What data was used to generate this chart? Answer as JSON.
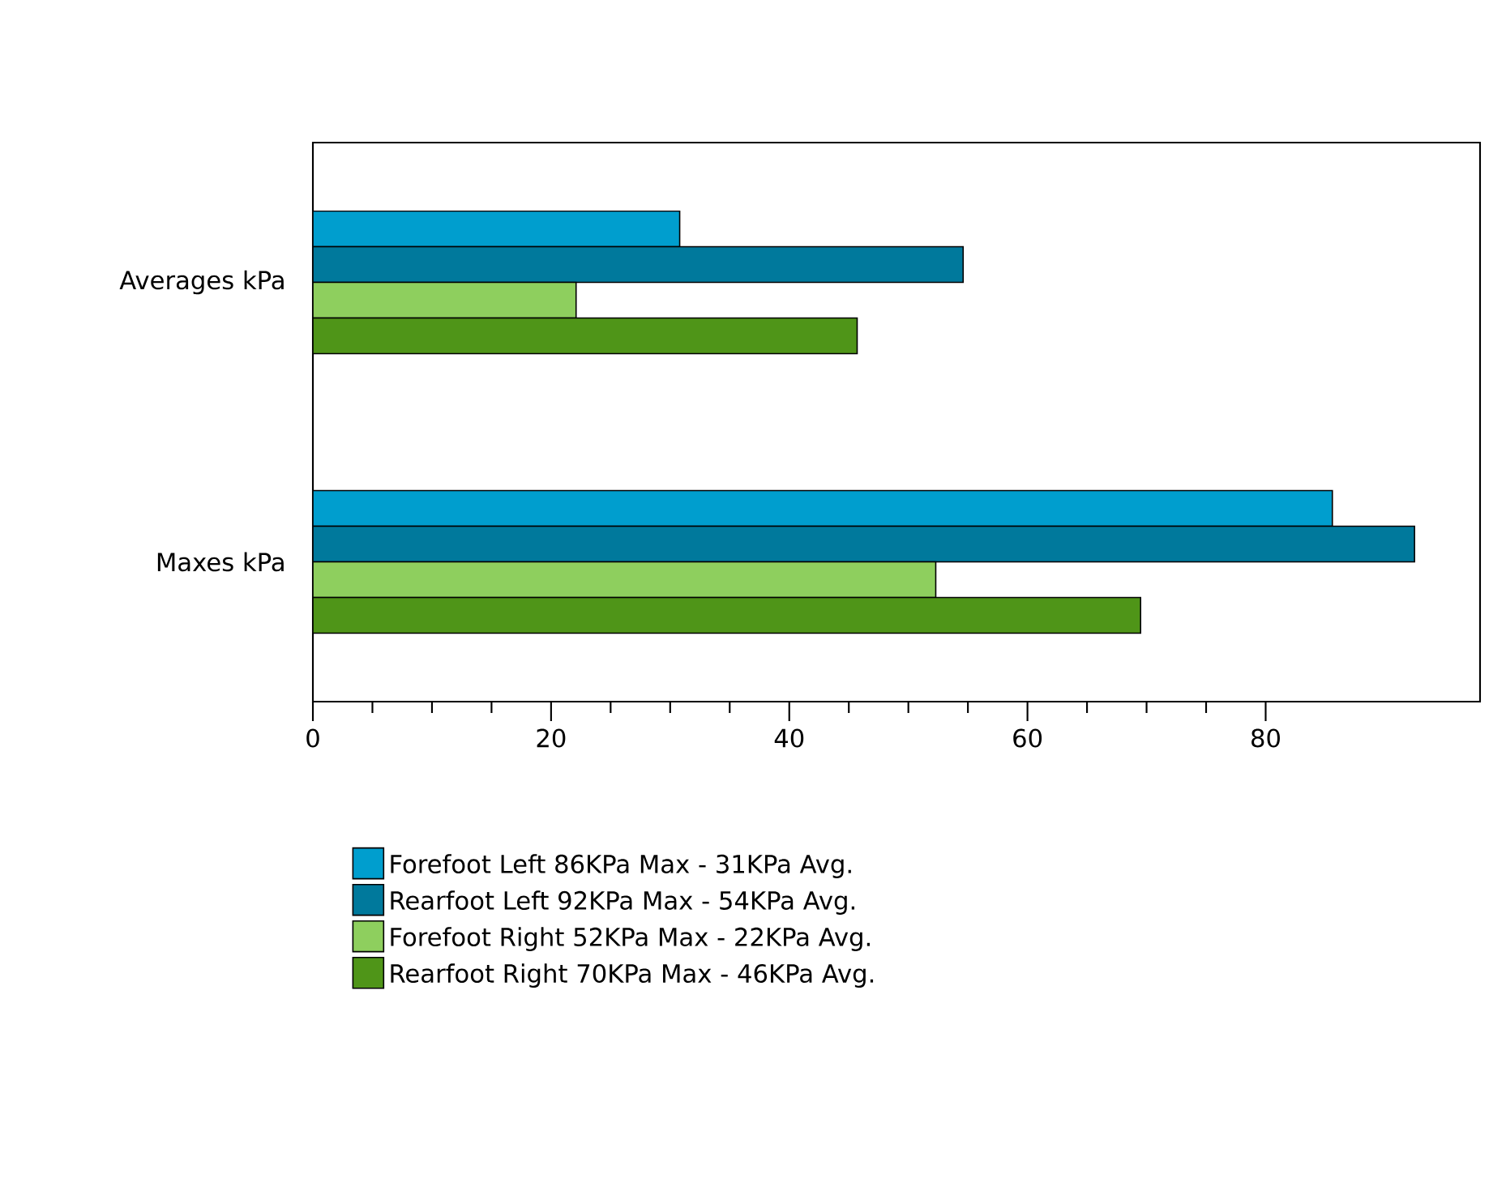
{
  "chart_data": {
    "type": "bar",
    "orientation": "horizontal",
    "categories": [
      "Averages kPa",
      "Maxes kPa"
    ],
    "series": [
      {
        "name": "Forefoot Left 86KPa Max - 31KPa Avg.",
        "color": "#009ece",
        "values": [
          30.8,
          85.6
        ]
      },
      {
        "name": "Rearfoot Left 92KPa Max - 54KPa Avg.",
        "color": "#00799c",
        "values": [
          54.6,
          92.5
        ]
      },
      {
        "name": "Forefoot Right 52KPa Max - 22KPa Avg.",
        "color": "#8ecf5e",
        "values": [
          22.1,
          52.3
        ]
      },
      {
        "name": "Rearfoot Right 70KPa Max - 46KPa Avg.",
        "color": "#4f9518",
        "values": [
          45.7,
          69.5
        ]
      }
    ],
    "xlim": [
      0,
      98
    ],
    "xticks": [
      0,
      20,
      40,
      60,
      80
    ],
    "legend": "bottom",
    "grid": false
  }
}
